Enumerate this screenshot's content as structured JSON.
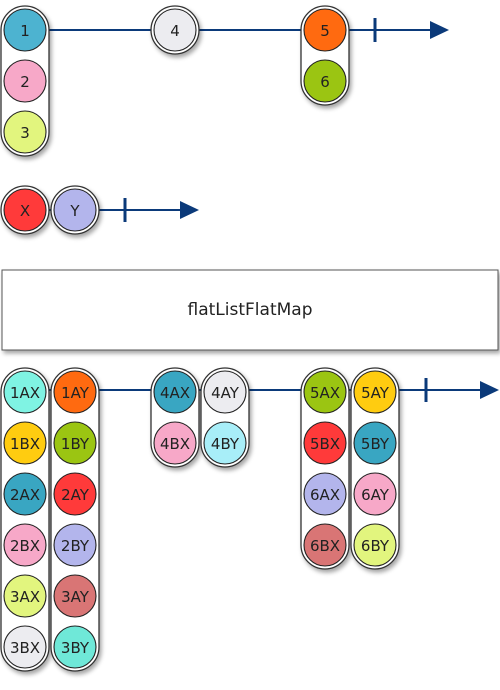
{
  "operator": {
    "name": "flatListFlatMap"
  },
  "colors": {
    "timeline": "#0b3a7a",
    "c1": "#4db3d0",
    "c2": "#f7a8c8",
    "c3": "#e2f57e",
    "c4": "#ececf0",
    "c5": "#ff6a10",
    "c6": "#9bc512",
    "cX": "#ff3a3a",
    "cY": "#b3b5ec",
    "c1AX": "#7ff3e3",
    "c1AY": "#ff6a10",
    "c1BX": "#ffcc10",
    "c1BY": "#9bc512",
    "c2AX": "#39a6c2",
    "c2AY": "#ff3a3a",
    "c2BX": "#f7a8c8",
    "c2BY": "#b3b5ec",
    "c3AX": "#e2f57e",
    "c3AY": "#d97575",
    "c3BX": "#ececf0",
    "c3BY": "#6fe8d8",
    "c4AX": "#39a6c2",
    "c4AY": "#ececf0",
    "c4BX": "#f7a8c8",
    "c4BY": "#a8eef8",
    "c5AX": "#9bc512",
    "c5AY": "#ffcc10",
    "c5BX": "#ff3a3a",
    "c5BY": "#39a6c2",
    "c6AX": "#b3b5ec",
    "c6AY": "#f7a8c8",
    "c6BX": "#d97575",
    "c6BY": "#e2f57e"
  },
  "source_a": {
    "groups": [
      {
        "items": [
          {
            "label": "1",
            "color": "c1"
          },
          {
            "label": "2",
            "color": "c2"
          },
          {
            "label": "3",
            "color": "c3"
          }
        ]
      },
      {
        "items": [
          {
            "label": "4",
            "color": "c4"
          }
        ]
      },
      {
        "items": [
          {
            "label": "5",
            "color": "c5"
          },
          {
            "label": "6",
            "color": "c6"
          }
        ]
      }
    ]
  },
  "source_b": {
    "items": [
      {
        "label": "X",
        "color": "cX"
      },
      {
        "label": "Y",
        "color": "cY"
      }
    ]
  },
  "result": {
    "groups": [
      {
        "columns": [
          [
            {
              "label": "1AX",
              "color": "c1AX"
            },
            {
              "label": "1BX",
              "color": "c1BX"
            },
            {
              "label": "2AX",
              "color": "c2AX"
            },
            {
              "label": "2BX",
              "color": "c2BX"
            },
            {
              "label": "3AX",
              "color": "c3AX"
            },
            {
              "label": "3BX",
              "color": "c3BX"
            }
          ],
          [
            {
              "label": "1AY",
              "color": "c1AY"
            },
            {
              "label": "1BY",
              "color": "c1BY"
            },
            {
              "label": "2AY",
              "color": "c2AY"
            },
            {
              "label": "2BY",
              "color": "c2BY"
            },
            {
              "label": "3AY",
              "color": "c3AY"
            },
            {
              "label": "3BY",
              "color": "c3BY"
            }
          ]
        ]
      },
      {
        "columns": [
          [
            {
              "label": "4AX",
              "color": "c4AX"
            },
            {
              "label": "4BX",
              "color": "c4BX"
            }
          ],
          [
            {
              "label": "4AY",
              "color": "c4AY"
            },
            {
              "label": "4BY",
              "color": "c4BY"
            }
          ]
        ]
      },
      {
        "columns": [
          [
            {
              "label": "5AX",
              "color": "c5AX"
            },
            {
              "label": "5BX",
              "color": "c5BX"
            },
            {
              "label": "6AX",
              "color": "c6AX"
            },
            {
              "label": "6BX",
              "color": "c6BX"
            }
          ],
          [
            {
              "label": "5AY",
              "color": "c5AY"
            },
            {
              "label": "5BY",
              "color": "c5BY"
            },
            {
              "label": "6AY",
              "color": "c6AY"
            },
            {
              "label": "6BY",
              "color": "c6BY"
            }
          ]
        ]
      }
    ]
  }
}
